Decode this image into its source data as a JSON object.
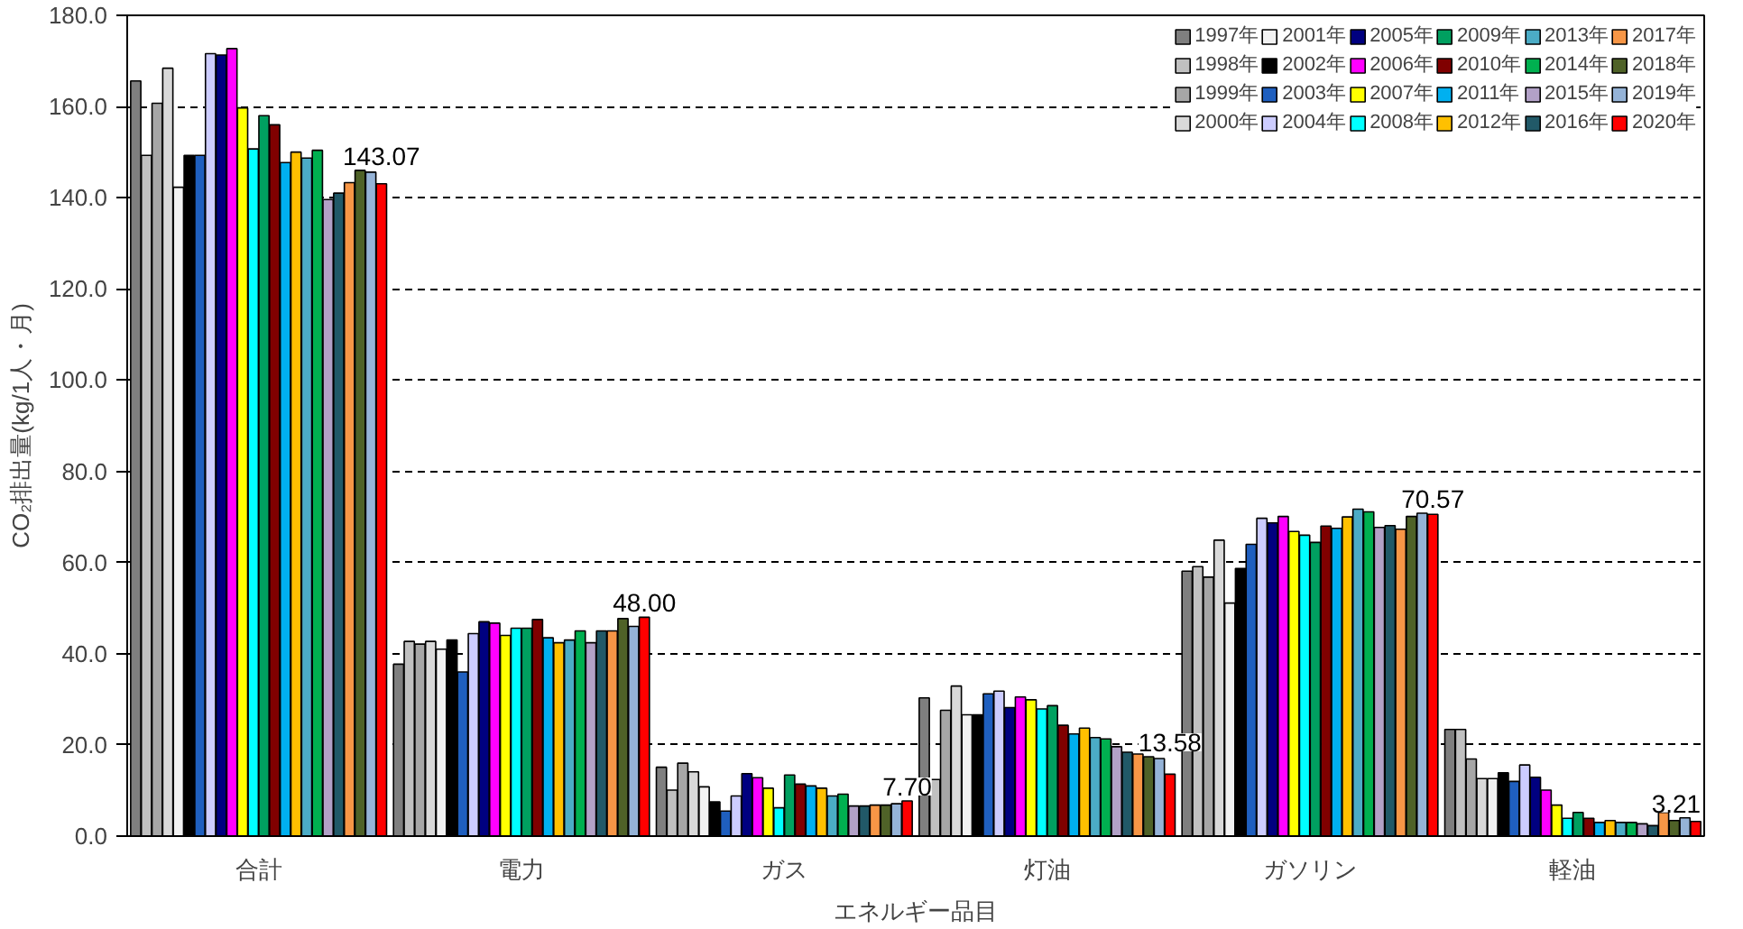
{
  "chart_data": {
    "type": "bar",
    "xlabel": "エネルギー品目",
    "ylabel": "CO₂排出量(kg/1人・月)",
    "categories": [
      "合計",
      "電力",
      "ガス",
      "灯油",
      "ガソリン",
      "軽油"
    ],
    "ylim": [
      0,
      180
    ],
    "yticks": [
      {
        "value": 0,
        "label": "0.0"
      },
      {
        "value": 20,
        "label": "20.0"
      },
      {
        "value": 40,
        "label": "40.0"
      },
      {
        "value": 60,
        "label": "60.0"
      },
      {
        "value": 80,
        "label": "80.0"
      },
      {
        "value": 100,
        "label": "100.0"
      },
      {
        "value": 120,
        "label": "120.0"
      },
      {
        "value": 140,
        "label": "140.0"
      },
      {
        "value": 160,
        "label": "160.0"
      },
      {
        "value": 180,
        "label": "180.0"
      }
    ],
    "grid": "y",
    "legend": "top right",
    "series": [
      {
        "name": "1997年",
        "color": "#7f7f7f",
        "values": [
          165.6,
          37.7,
          15.1,
          30.3,
          58.1,
          23.4
        ]
      },
      {
        "name": "1998年",
        "color": "#c0c0c0",
        "values": [
          149.3,
          42.7,
          10.1,
          12.4,
          59.1,
          23.4
        ]
      },
      {
        "name": "1999年",
        "color": "#a6a6a6",
        "values": [
          160.7,
          42.1,
          16.0,
          27.6,
          56.8,
          16.9
        ]
      },
      {
        "name": "2000年",
        "color": "#d9d9d9",
        "values": [
          168.4,
          42.7,
          14.1,
          32.9,
          64.9,
          12.6
        ]
      },
      {
        "name": "2001年",
        "color": "#f2f2f2",
        "values": [
          142.3,
          41.0,
          10.8,
          26.6,
          51.1,
          12.6
        ]
      },
      {
        "name": "2002年",
        "color": "#000000",
        "values": [
          149.3,
          43.0,
          7.5,
          26.6,
          58.7,
          13.9
        ]
      },
      {
        "name": "2003年",
        "color": "#1f5fbf",
        "values": [
          149.3,
          36.0,
          5.5,
          31.2,
          64.0,
          12.0
        ]
      },
      {
        "name": "2004年",
        "color": "#ccccff",
        "values": [
          171.6,
          44.4,
          8.8,
          31.8,
          69.7,
          15.6
        ]
      },
      {
        "name": "2005年",
        "color": "#000080",
        "values": [
          171.3,
          47.0,
          13.7,
          28.2,
          68.7,
          12.9
        ]
      },
      {
        "name": "2006年",
        "color": "#ff00ff",
        "values": [
          172.7,
          46.7,
          12.8,
          30.5,
          70.1,
          10.1
        ]
      },
      {
        "name": "2007年",
        "color": "#ffff00",
        "values": [
          159.7,
          44.0,
          10.5,
          29.9,
          66.8,
          6.8
        ]
      },
      {
        "name": "2008年",
        "color": "#00ffff",
        "values": [
          150.7,
          45.6,
          6.2,
          27.9,
          66.0,
          3.9
        ]
      },
      {
        "name": "2009年",
        "color": "#00a060",
        "values": [
          158.0,
          45.6,
          13.4,
          28.6,
          64.4,
          5.2
        ]
      },
      {
        "name": "2010年",
        "color": "#800000",
        "values": [
          156.0,
          47.5,
          11.4,
          24.3,
          68.0,
          3.9
        ]
      },
      {
        "name": "2011年",
        "color": "#00b0f0",
        "values": [
          147.7,
          43.5,
          11.0,
          22.4,
          67.5,
          3.0
        ]
      },
      {
        "name": "2012年",
        "color": "#ffc000",
        "values": [
          150.0,
          42.4,
          10.5,
          23.7,
          70.0,
          3.4
        ]
      },
      {
        "name": "2013年",
        "color": "#4bacc6",
        "values": [
          148.7,
          43.0,
          8.8,
          21.6,
          71.7,
          3.0
        ]
      },
      {
        "name": "2014年",
        "color": "#00b050",
        "values": [
          150.4,
          45.0,
          9.2,
          21.3,
          71.1,
          3.0
        ]
      },
      {
        "name": "2015年",
        "color": "#b2a1c7",
        "values": [
          139.6,
          42.4,
          6.6,
          19.6,
          67.7,
          2.7
        ]
      },
      {
        "name": "2016年",
        "color": "#215968",
        "values": [
          141.0,
          45.0,
          6.6,
          18.4,
          68.1,
          2.3
        ]
      },
      {
        "name": "2017年",
        "color": "#f79646",
        "values": [
          143.3,
          45.0,
          6.8,
          18.0,
          67.3,
          5.2
        ]
      },
      {
        "name": "2018年",
        "color": "#4f6228",
        "values": [
          146.0,
          47.7,
          6.8,
          17.4,
          70.1,
          3.4
        ]
      },
      {
        "name": "2019年",
        "color": "#95b3d7",
        "values": [
          145.6,
          46.0,
          7.1,
          17.0,
          70.8,
          4.0
        ]
      },
      {
        "name": "2020年",
        "color": "#ff0000",
        "values": [
          143.07,
          48.0,
          7.7,
          13.58,
          70.57,
          3.21
        ],
        "value_labels": [
          "143.07",
          "48.00",
          "7.70",
          "13.58",
          "70.57",
          "3.21"
        ]
      }
    ]
  }
}
